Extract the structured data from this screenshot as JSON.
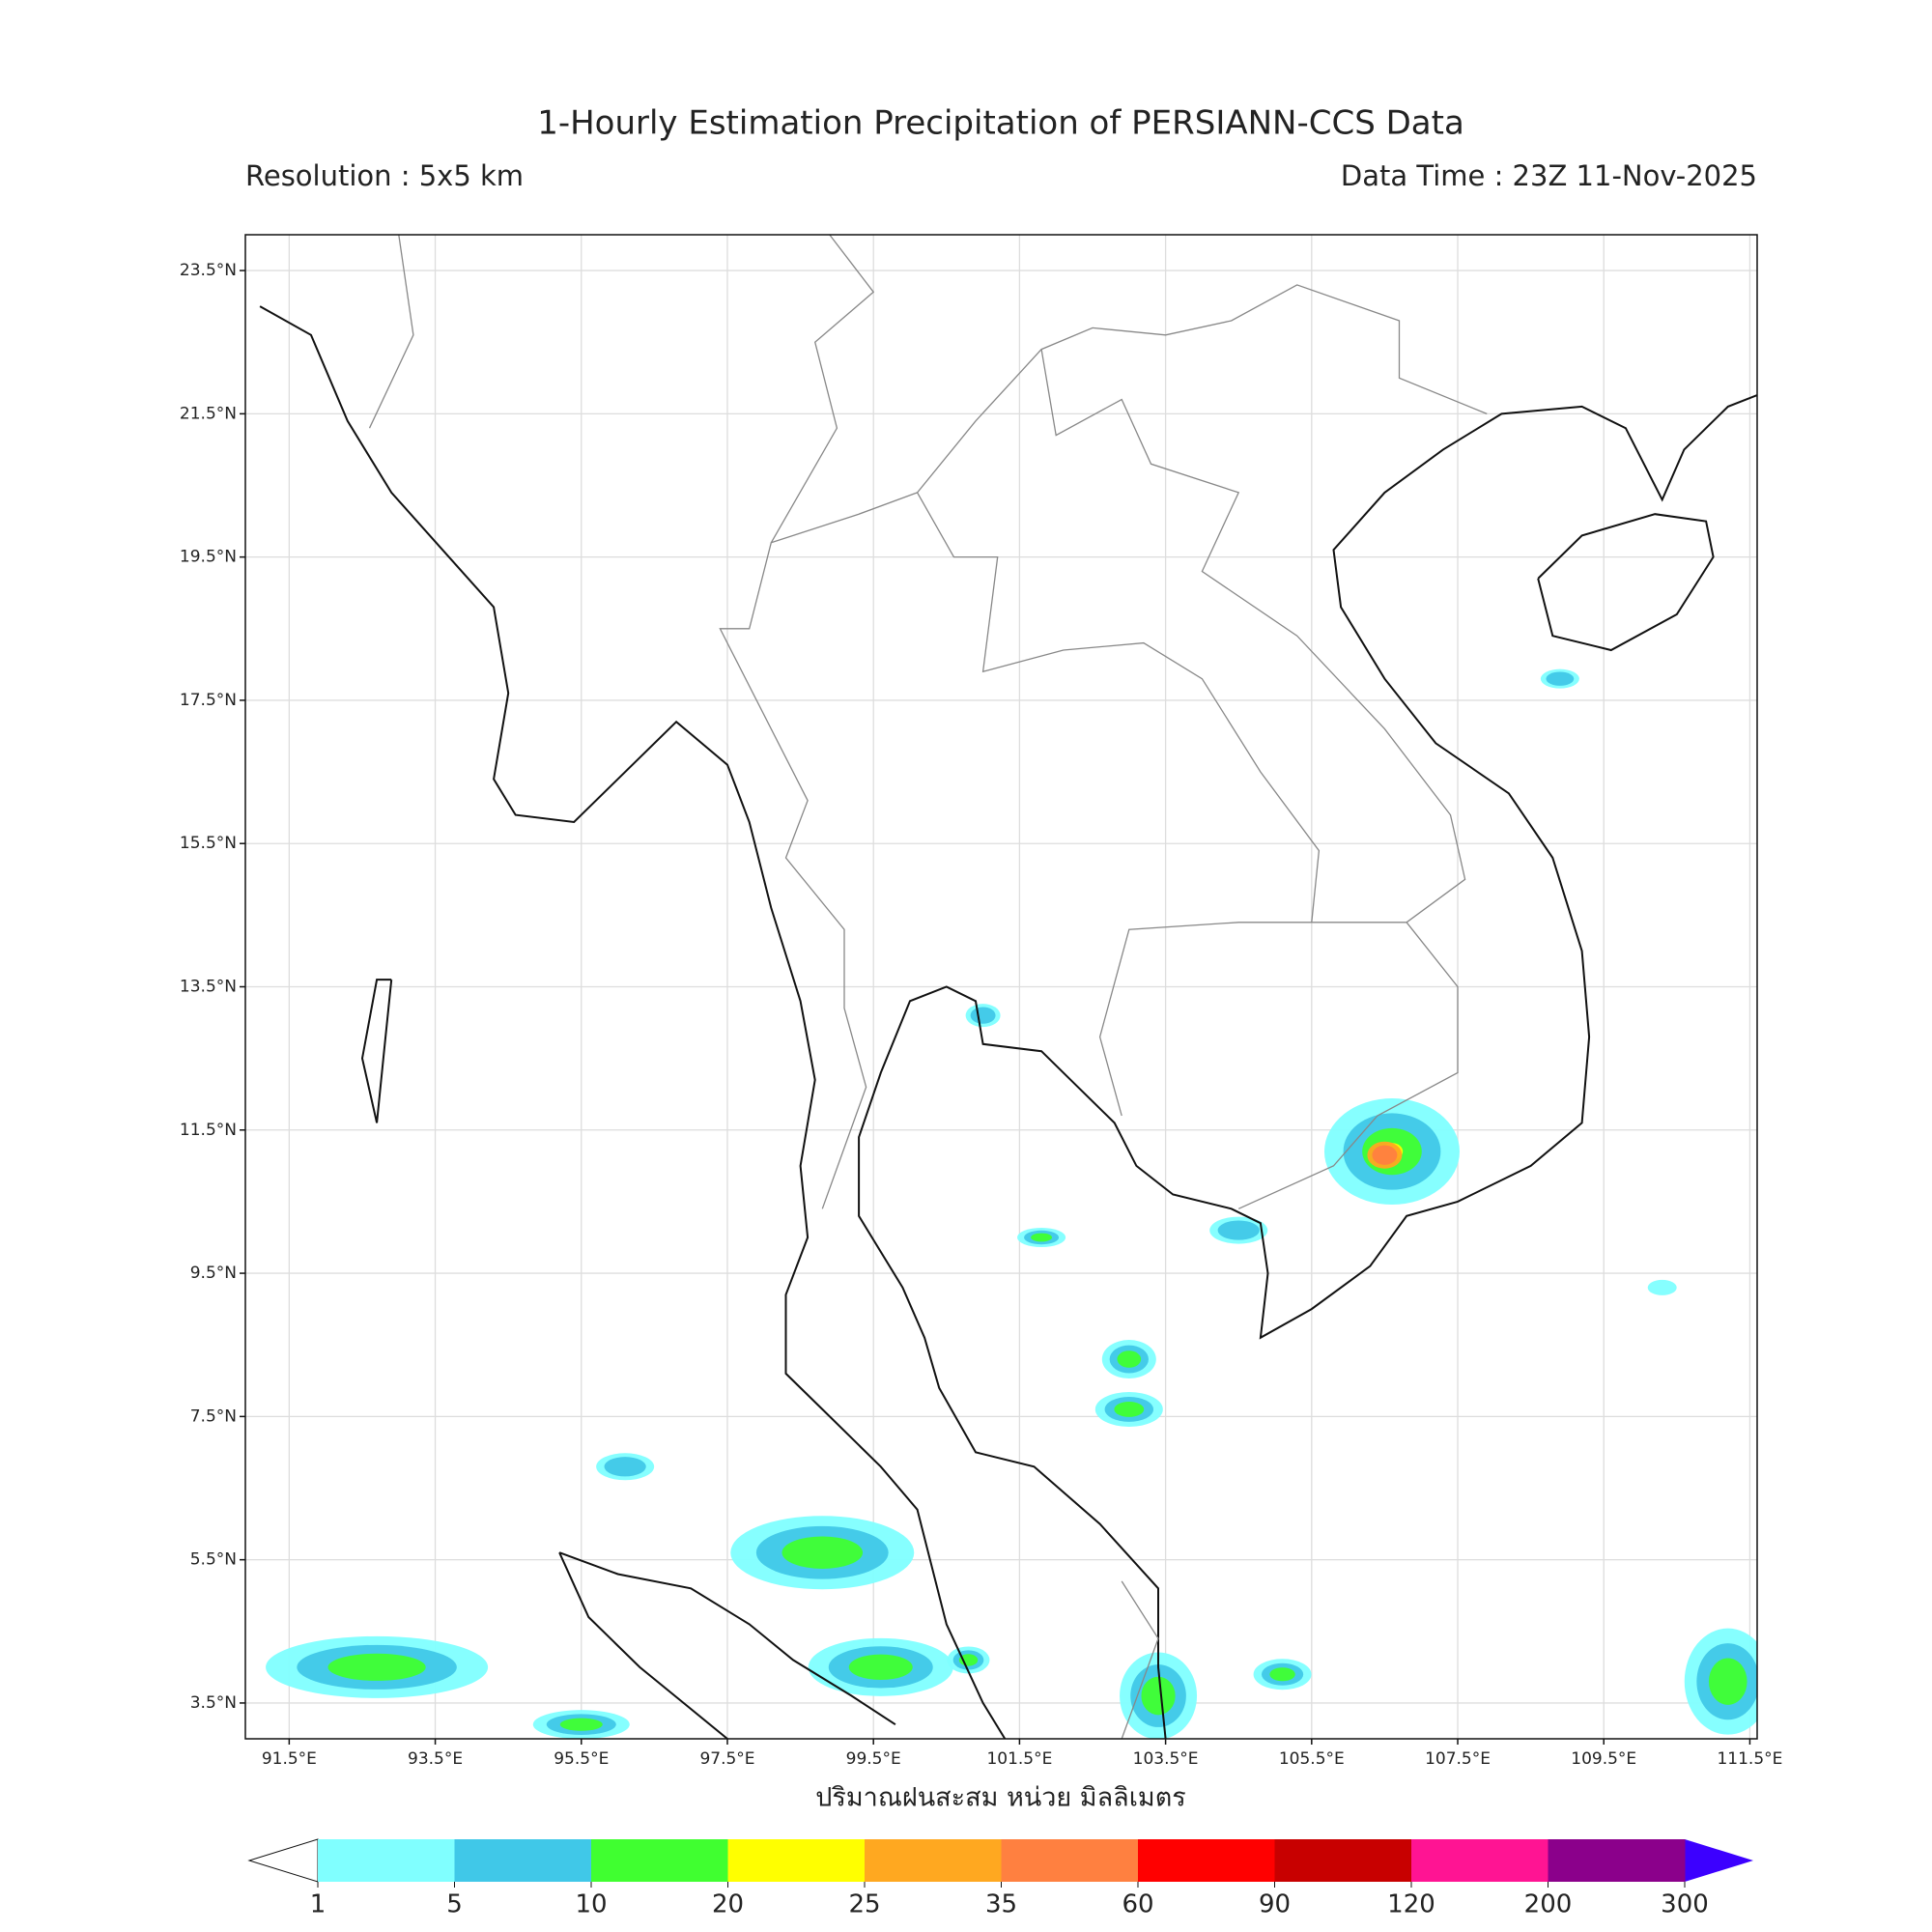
{
  "map": {
    "title": "1-Hourly Estimation Precipitation of PERSIANN-CCS Data",
    "subtitle_left": "Resolution : 5x5 km",
    "subtitle_right": "Data Time : 23Z 11-Nov-2025",
    "xlabel": "ปริมาณฝนสะสม หน่วย มิลลิเมตร",
    "xlim": [
      90.9,
      111.6
    ],
    "ylim": [
      3,
      24
    ],
    "grid": true,
    "xticks": [
      {
        "value": 91.5,
        "label": "91.5°E"
      },
      {
        "value": 93.5,
        "label": "93.5°E"
      },
      {
        "value": 95.5,
        "label": "95.5°E"
      },
      {
        "value": 97.5,
        "label": "97.5°E"
      },
      {
        "value": 99.5,
        "label": "99.5°E"
      },
      {
        "value": 101.5,
        "label": "101.5°E"
      },
      {
        "value": 103.5,
        "label": "103.5°E"
      },
      {
        "value": 105.5,
        "label": "105.5°E"
      },
      {
        "value": 107.5,
        "label": "107.5°E"
      },
      {
        "value": 109.5,
        "label": "109.5°E"
      },
      {
        "value": 111.5,
        "label": "111.5°E"
      }
    ],
    "yticks": [
      {
        "value": 23.5,
        "label": "23.5°N"
      },
      {
        "value": 21.5,
        "label": "21.5°N"
      },
      {
        "value": 19.5,
        "label": "19.5°N"
      },
      {
        "value": 17.5,
        "label": "17.5°N"
      },
      {
        "value": 15.5,
        "label": "15.5°N"
      },
      {
        "value": 13.5,
        "label": "13.5°N"
      },
      {
        "value": 11.5,
        "label": "11.5°N"
      },
      {
        "value": 9.5,
        "label": "9.5°N"
      },
      {
        "value": 7.5,
        "label": "7.5°N"
      },
      {
        "value": 5.5,
        "label": "5.5°N"
      },
      {
        "value": 3.5,
        "label": "3.5°N"
      }
    ],
    "colorbar": {
      "levels": [
        1,
        5,
        10,
        20,
        25,
        35,
        60,
        90,
        120,
        200,
        300
      ],
      "colors": [
        "#80ffff",
        "#40c8e8",
        "#40ff30",
        "#ffff00",
        "#ffa820",
        "#ff8040",
        "#ff0000",
        "#c80000",
        "#ff1493",
        "#8b008b"
      ],
      "under_color": "#ffffff",
      "over_color": "#3c00ff"
    }
  }
}
